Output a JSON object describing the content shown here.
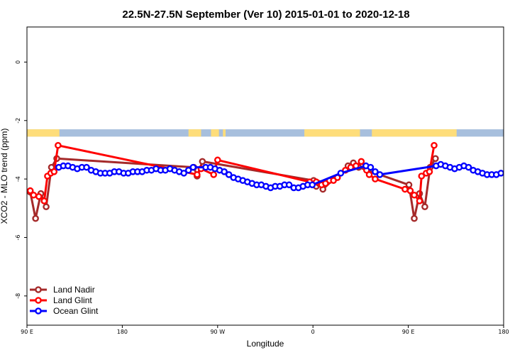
{
  "chart_data": {
    "type": "line",
    "title": "22.5N-27.5N September (Ver 10)   2015-01-01 to 2020-12-18",
    "xlabel": "Longitude",
    "ylabel": "XCO2 - MLO trend (ppm)",
    "xlim": [
      90,
      450
    ],
    "ylim": [
      -9,
      1.2
    ],
    "x_ticks": [
      {
        "value": 90,
        "label": "90 E"
      },
      {
        "value": 162,
        "label": "180"
      },
      {
        "value": 234,
        "label": "90 W"
      },
      {
        "value": 306,
        "label": "0"
      },
      {
        "value": 378,
        "label": "90 E"
      },
      {
        "value": 450,
        "label": "180"
      }
    ],
    "y_ticks": [
      {
        "value": 0,
        "label": "0"
      },
      {
        "value": -2,
        "label": "-2"
      },
      {
        "value": -4,
        "label": "-4"
      },
      {
        "value": -6,
        "label": "-6"
      },
      {
        "value": -8,
        "label": "-8"
      }
    ],
    "grid": false,
    "legend_position": "bottom-left",
    "land_mask": {
      "y_range": [
        -2.55,
        -2.3
      ],
      "ocean_color": "#a7bfdd",
      "land_color": "#fedd7a",
      "land_x_ranges": [
        [
          90,
          114.5
        ],
        [
          212,
          221.5
        ],
        [
          229,
          235
        ],
        [
          238,
          240
        ],
        [
          299.5,
          341.5
        ],
        [
          350.5,
          414.5
        ]
      ]
    },
    "series": [
      {
        "name": "Land Nadir",
        "color": "#a52a2a",
        "x": [
          92.5,
          96.5,
          100.5,
          104.5,
          108.5,
          112.5,
          216,
          218.5,
          222.5,
          306.5,
          308.5,
          310.5,
          313.5,
          332.5,
          336.5,
          340.5,
          378.5,
          382.5,
          386.5,
          390.5,
          394.5,
          398.5
        ],
        "y": [
          -4.45,
          -5.35,
          -4.5,
          -4.95,
          -3.6,
          -3.3,
          -3.6,
          -3.9,
          -3.4,
          -4.05,
          -4.25,
          -4.15,
          -4.35,
          -3.55,
          -3.45,
          -3.6,
          -4.2,
          -5.35,
          -4.5,
          -4.95,
          -3.6,
          -3.3
        ]
      },
      {
        "name": "Land Glint",
        "color": "#ff0000",
        "x": [
          92.5,
          95,
          99,
          103,
          105.5,
          108,
          110.5,
          113.5,
          218.5,
          221.5,
          231,
          234,
          303.5,
          308.5,
          312.5,
          315.5,
          318.5,
          321.5,
          324.5,
          330.5,
          334.5,
          338.5,
          342.5,
          346.5,
          348.5,
          353,
          375.5,
          379.5,
          382.5,
          386.5,
          388,
          391.5,
          394,
          397.5
        ],
        "y": [
          -4.4,
          -4.55,
          -4.6,
          -4.75,
          -3.9,
          -3.8,
          -3.75,
          -2.85,
          -3.85,
          -3.65,
          -3.85,
          -3.35,
          -4.1,
          -4.1,
          -4.2,
          -4.15,
          -4.05,
          -4.05,
          -3.95,
          -3.7,
          -3.6,
          -3.55,
          -3.4,
          -3.7,
          -3.85,
          -4.0,
          -4.35,
          -4.4,
          -4.55,
          -4.75,
          -3.9,
          -3.8,
          -3.75,
          -2.85
        ]
      },
      {
        "name": "Ocean Glint",
        "color": "#0000ff",
        "x": [
          114,
          117.5,
          121,
          124.5,
          128,
          131.5,
          135,
          138.5,
          142,
          145.5,
          149,
          152.5,
          156,
          159.5,
          163,
          166.5,
          170,
          173.5,
          177,
          180.5,
          184,
          187.5,
          191,
          194.5,
          198,
          201.5,
          205,
          208.5,
          212,
          215.5,
          225,
          228.5,
          232,
          235.5,
          239,
          242.5,
          246,
          249.5,
          253,
          256.5,
          260,
          263.5,
          267,
          270.5,
          274,
          277.5,
          281,
          284.5,
          288,
          291.5,
          295,
          298.5,
          302,
          305.5,
          327,
          346,
          349.5,
          353,
          356.5,
          399,
          402.5,
          406,
          409.5,
          413,
          416.5,
          420,
          423.5,
          427,
          430.5,
          434,
          437.5,
          441,
          444.5,
          448
        ],
        "y": [
          -3.6,
          -3.55,
          -3.55,
          -3.6,
          -3.65,
          -3.6,
          -3.6,
          -3.7,
          -3.75,
          -3.8,
          -3.8,
          -3.8,
          -3.75,
          -3.75,
          -3.8,
          -3.8,
          -3.75,
          -3.75,
          -3.75,
          -3.7,
          -3.7,
          -3.65,
          -3.7,
          -3.7,
          -3.65,
          -3.7,
          -3.75,
          -3.8,
          -3.7,
          -3.6,
          -3.6,
          -3.6,
          -3.65,
          -3.7,
          -3.75,
          -3.85,
          -3.95,
          -4.0,
          -4.05,
          -4.1,
          -4.15,
          -4.2,
          -4.2,
          -4.25,
          -4.3,
          -4.25,
          -4.25,
          -4.2,
          -4.2,
          -4.3,
          -4.3,
          -4.25,
          -4.2,
          -4.2,
          -3.8,
          -3.55,
          -3.6,
          -3.75,
          -3.85,
          -3.55,
          -3.5,
          -3.55,
          -3.6,
          -3.65,
          -3.6,
          -3.55,
          -3.6,
          -3.7,
          -3.75,
          -3.8,
          -3.85,
          -3.85,
          -3.85,
          -3.8
        ]
      }
    ]
  }
}
